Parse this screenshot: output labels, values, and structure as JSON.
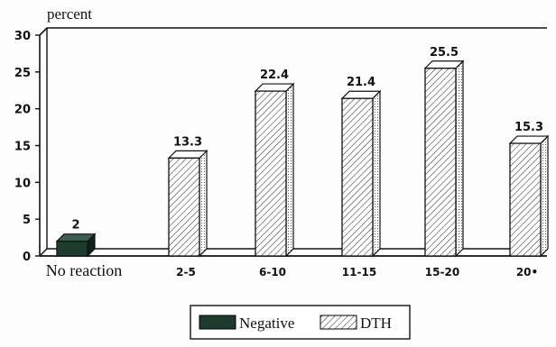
{
  "chart_data": {
    "type": "bar",
    "ylabel": "percent",
    "ylim": [
      0,
      30
    ],
    "yticks": [
      "0",
      "5",
      "10",
      "15",
      "20",
      "25",
      "30"
    ],
    "categories": [
      "No reaction",
      "2-5",
      "6-10",
      "11-15",
      "15-20",
      "20+"
    ],
    "category_labels": [
      "No reaction",
      "2-5",
      "6-10",
      "11-15",
      "15-20",
      "20•"
    ],
    "series": [
      {
        "name": "Negative",
        "color": "#1f3b30",
        "values": [
          2,
          null,
          null,
          null,
          null,
          null
        ]
      },
      {
        "name": "DTH",
        "pattern": "hatch",
        "values": [
          null,
          13.3,
          22.4,
          21.4,
          25.5,
          15.3
        ]
      }
    ],
    "data_labels": [
      "2",
      "13.3",
      "22.4",
      "21.4",
      "25.5",
      "15.3"
    ],
    "legend": {
      "position": "bottom-center",
      "items": [
        "Negative",
        "DTH"
      ]
    },
    "grid": false,
    "style": "3d"
  }
}
